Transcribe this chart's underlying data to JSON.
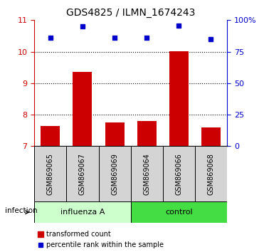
{
  "title": "GDS4825 / ILMN_1674243",
  "categories": [
    "GSM869065",
    "GSM869067",
    "GSM869069",
    "GSM869064",
    "GSM869066",
    "GSM869068"
  ],
  "bar_values": [
    7.65,
    9.35,
    7.75,
    7.8,
    10.02,
    7.6
  ],
  "bar_base": 7.0,
  "bar_color": "#cc0000",
  "blue_values_left": [
    10.45,
    10.8,
    10.45,
    10.45,
    10.82,
    10.4
  ],
  "blue_color": "#0000cc",
  "ylim_left": [
    7,
    11
  ],
  "ylim_right": [
    0,
    100
  ],
  "yticks_left": [
    7,
    8,
    9,
    10,
    11
  ],
  "yticks_right": [
    0,
    25,
    50,
    75,
    100
  ],
  "ytick_labels_right": [
    "0",
    "25",
    "50",
    "75",
    "100%"
  ],
  "group1_label": "influenza A",
  "group2_label": "control",
  "factor_label": "infection",
  "group1_color_light": "#ccffcc",
  "group2_color_dark": "#44dd44",
  "gray_box_color": "#d4d4d4",
  "left_axis_color": "#cc0000",
  "right_axis_color": "#0000cc",
  "legend_bar_label": "transformed count",
  "legend_dot_label": "percentile rank within the sample",
  "title_fontsize": 10,
  "tick_fontsize": 8,
  "label_fontsize": 7,
  "bar_width": 0.6
}
